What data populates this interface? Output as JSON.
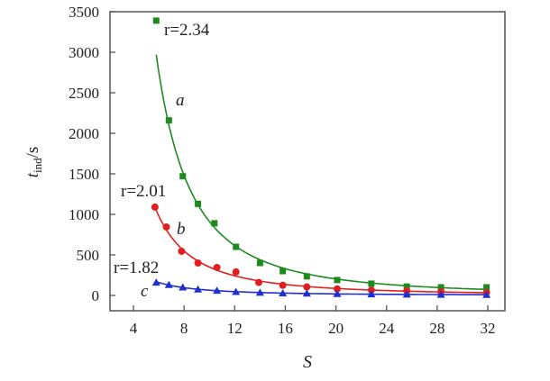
{
  "chart_data": {
    "type": "scatter",
    "xlabel": "S",
    "ylabel_main": "t",
    "ylabel_sub": "ind",
    "ylabel_unit": "/s",
    "xlim": [
      2,
      33
    ],
    "ylim": [
      -180,
      3500
    ],
    "xticks": [
      4,
      8,
      12,
      16,
      20,
      24,
      28,
      32
    ],
    "yticks": [
      0,
      500,
      1000,
      1500,
      2000,
      2500,
      3000,
      3500
    ],
    "grid": false,
    "series": [
      {
        "name": "a",
        "label": "r=2.34",
        "color": "#1e8a1e",
        "marker": "square",
        "x": [
          5.8,
          6.8,
          7.9,
          9.1,
          10.4,
          12.1,
          14.0,
          15.8,
          17.7,
          20.1,
          22.8,
          25.6,
          28.3,
          31.9
        ],
        "y": [
          3390,
          2160,
          1470,
          1130,
          890,
          600,
          400,
          300,
          235,
          190,
          145,
          110,
          100,
          100
        ]
      },
      {
        "name": "b",
        "label": "r=2.01",
        "color": "#e02020",
        "marker": "circle",
        "x": [
          5.7,
          6.6,
          7.8,
          9.1,
          10.6,
          12.1,
          13.9,
          15.8,
          17.7,
          20.1,
          22.8,
          25.6,
          28.3,
          31.9
        ],
        "y": [
          1090,
          845,
          545,
          400,
          345,
          290,
          160,
          125,
          105,
          80,
          65,
          55,
          45,
          35
        ]
      },
      {
        "name": "c",
        "label": "r=1.82",
        "color": "#1f2fd0",
        "marker": "triangle",
        "x": [
          5.8,
          6.8,
          7.9,
          9.1,
          10.6,
          12.1,
          14.0,
          15.8,
          17.7,
          20.1,
          22.8,
          25.6,
          28.3,
          31.9
        ],
        "y": [
          160,
          130,
          100,
          75,
          60,
          45,
          35,
          28,
          25,
          20,
          15,
          12,
          10,
          8
        ]
      }
    ]
  }
}
